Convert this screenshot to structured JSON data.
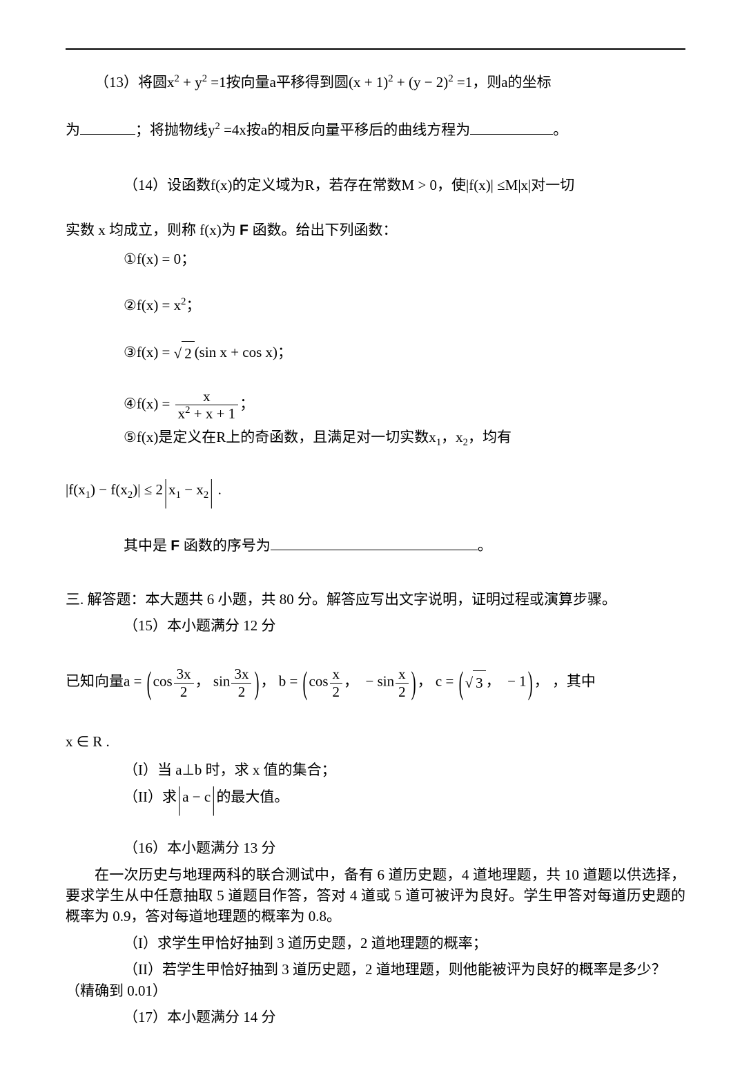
{
  "q13": {
    "prefix": "（13）将圆",
    "circle1": "x",
    "plus1": " + ",
    "circle1b": "y",
    "eq1": " =1按向量a平移得到圆(x + 1)",
    "eq1b": " + (y − 2)",
    "eq1c": " =1，则a的坐标",
    "line2a": "为",
    "line2b": "；将抛物线y",
    "line2c": " =4x按a的相反向量平移后的曲线方程为",
    "line2d": "。"
  },
  "q14": {
    "prefix": "（14）设函数f(x)的定义域为R，若存在常数M > 0，使|f(x)| ≤M|x|对一切",
    "line2a": "实数 x 均成立，则称 f(x)为 ",
    "Fword": "F",
    "line2b": " 函数。给出下列函数：",
    "item1": "①f(x) = 0；",
    "item2": "②f(x) = x",
    "item2b": "；",
    "item3a": "③f(x) = ",
    "radicand3": "2",
    "item3b": "(sin x + cos x)；",
    "item4a": "④f(x) = ",
    "fr4_num": "x",
    "fr4_den_a": "x",
    "fr4_den_b": " + x + 1",
    "item4b": "；",
    "item5": "⑤f(x)是定义在R上的奇函数，且满足对一切实数x",
    "item5b": "，x",
    "item5c": "，均有",
    "ineq": "|f(x",
    "ineq_b": ") − f(x",
    "ineq_c": ")| ≤ 2",
    "ineq_big_l": "|",
    "ineq_d": "x",
    "ineq_e": " − x",
    "ineq_big_r": "|",
    "ineq_f": " .",
    "tail_a": "其中是 ",
    "tail_b": " 函数的序号为",
    "tail_c": "。"
  },
  "sec3": {
    "title": "三. 解答题：本大题共 6 小题，共 80 分。解答应写出文字说明，证明过程或演算步骤。",
    "q15head": "（15）本小题满分 12 分",
    "q15a_pre": "已知向量a = ",
    "cos32a": "cos",
    "f32_num": "3x",
    "f32_den": "2",
    "sin32a": "sin",
    "comma": "，",
    "b_label": "b = ",
    "cosx2": "cos",
    "fx2_num": "x",
    "fx2_den": "2",
    "sinx2": " − sin",
    "c_label": "c = ",
    "c_elem1_r": "3",
    "c_elem2": " − 1",
    "q15a_post": "，其中",
    "q15a_domain": "x ∈ R .",
    "q15_I": "（I）当 a⊥b 时，求 x 值的集合；",
    "q15_II_a": "（II）求",
    "q15_II_b": "a − c",
    "q15_II_c": "的最大值。",
    "q16head": "（16）本小题满分 13 分",
    "q16p1": "在一次历史与地理两科的联合测试中，备有 6 道历史题，4 道地理题，共 10 道题以供选择，要求学生从中任意抽取 5 道题目作答，答对 4 道或 5 道可被评为良好。学生甲答对每道历史题的概率为 0.9，答对每道地理题的概率为 0.8。",
    "q16_I": "（I）求学生甲恰好抽到 3 道历史题，2 道地理题的概率；",
    "q16_II": "（II）若学生甲恰好抽到 3 道历史题，2 道地理题，则他能被评为良好的概率是多少？（精确到 0.01）",
    "q17head": "（17）本小题满分 14 分"
  },
  "sub": {
    "1": "1",
    "2": "2"
  },
  "symbols": {
    "sqrt": "√",
    "bigabs": "|",
    "lparen": "(",
    "rparen": ")"
  }
}
